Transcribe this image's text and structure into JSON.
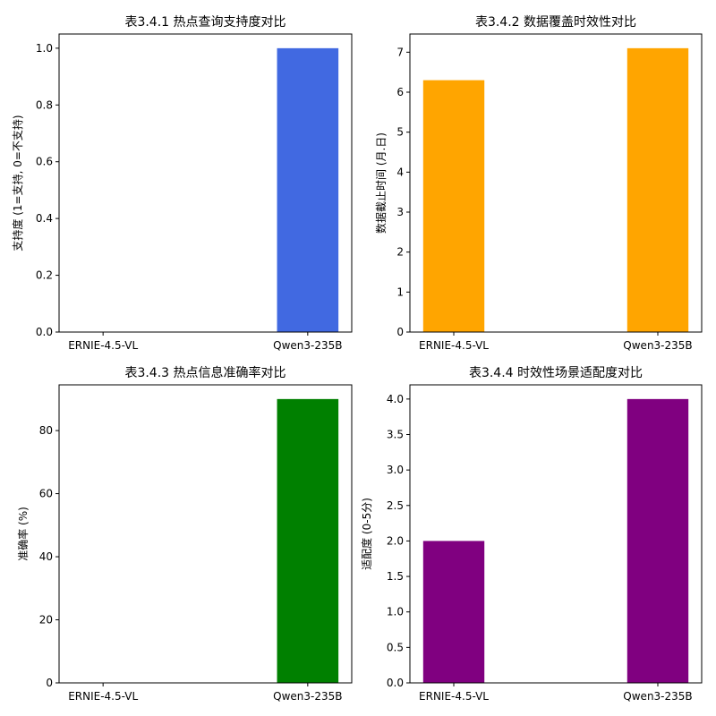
{
  "chart_data": [
    {
      "type": "bar",
      "title": "表3.4.1 热点查询支持度对比",
      "ylabel": "支持度 (1=支持, 0=不支持)",
      "categories": [
        "ERNIE-4.5-VL",
        "Qwen3-235B"
      ],
      "values": [
        0,
        1
      ],
      "color": "#4169e1",
      "ylim": [
        0,
        1.05
      ],
      "yticks": [
        0.0,
        0.2,
        0.4,
        0.6,
        0.8,
        1.0
      ],
      "ytick_labels": [
        "0.0",
        "0.2",
        "0.4",
        "0.6",
        "0.8",
        "1.0"
      ],
      "grid": false
    },
    {
      "type": "bar",
      "title": "表3.4.2 数据覆盖时效性对比",
      "ylabel": "数据截止时间 (月.日)",
      "categories": [
        "ERNIE-4.5-VL",
        "Qwen3-235B"
      ],
      "values": [
        6.3,
        7.1
      ],
      "color": "#ffa500",
      "ylim": [
        0,
        7.455
      ],
      "yticks": [
        0,
        1,
        2,
        3,
        4,
        5,
        6,
        7
      ],
      "ytick_labels": [
        "0",
        "1",
        "2",
        "3",
        "4",
        "5",
        "6",
        "7"
      ],
      "grid": false
    },
    {
      "type": "bar",
      "title": "表3.4.3 热点信息准确率对比",
      "ylabel": "准确率 (%)",
      "categories": [
        "ERNIE-4.5-VL",
        "Qwen3-235B"
      ],
      "values": [
        0,
        90
      ],
      "color": "#008000",
      "ylim": [
        0,
        94.5
      ],
      "yticks": [
        0,
        20,
        40,
        60,
        80
      ],
      "ytick_labels": [
        "0",
        "20",
        "40",
        "60",
        "80"
      ],
      "grid": false
    },
    {
      "type": "bar",
      "title": "表3.4.4 时效性场景适配度对比",
      "ylabel": "适配度 (0-5分)",
      "categories": [
        "ERNIE-4.5-VL",
        "Qwen3-235B"
      ],
      "values": [
        2,
        4
      ],
      "color": "#800080",
      "ylim": [
        0,
        4.2
      ],
      "yticks": [
        0.0,
        0.5,
        1.0,
        1.5,
        2.0,
        2.5,
        3.0,
        3.5,
        4.0
      ],
      "ytick_labels": [
        "0.0",
        "0.5",
        "1.0",
        "1.5",
        "2.0",
        "2.5",
        "3.0",
        "3.5",
        "4.0"
      ],
      "grid": false
    }
  ]
}
